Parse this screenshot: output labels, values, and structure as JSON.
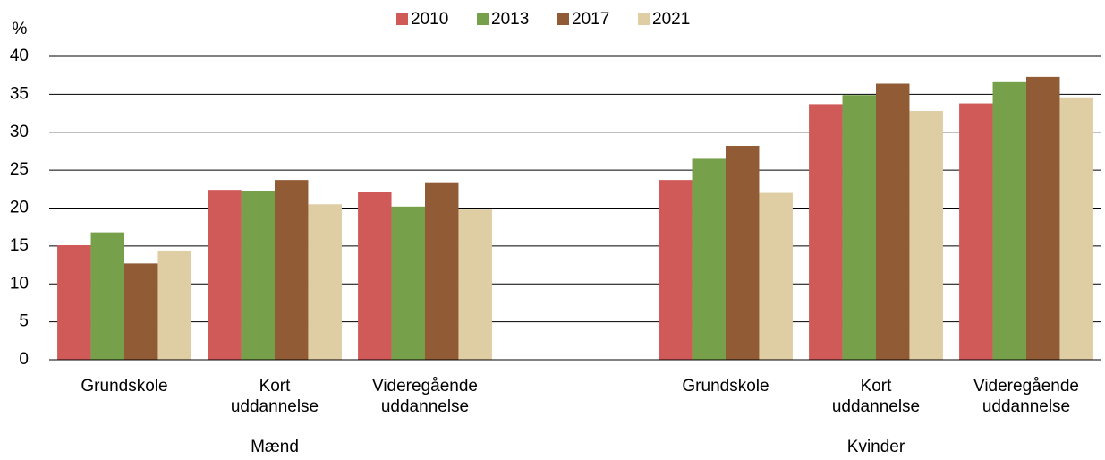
{
  "chart_data": {
    "type": "bar",
    "y_label": "%",
    "categories": [
      "Grundskole",
      "Kort uddannelse",
      "Videregående uddannelse",
      null,
      "Grundskole",
      "Kort uddannelse",
      "Videregående uddannelse"
    ],
    "groups": [
      "Mænd",
      "Kvinder"
    ],
    "series": [
      {
        "name": "2010",
        "color": "#d05a58",
        "values": [
          15.1,
          22.4,
          22.1,
          null,
          23.7,
          33.7,
          33.8
        ]
      },
      {
        "name": "2013",
        "color": "#77a04a",
        "values": [
          16.8,
          22.3,
          20.2,
          null,
          26.5,
          34.9,
          36.6
        ]
      },
      {
        "name": "2017",
        "color": "#915b35",
        "values": [
          12.7,
          23.7,
          23.4,
          null,
          28.2,
          36.4,
          37.3
        ]
      },
      {
        "name": "2021",
        "color": "#dfcda4",
        "values": [
          14.4,
          20.5,
          19.8,
          null,
          22.0,
          32.8,
          34.6
        ]
      }
    ],
    "ylim": [
      0,
      40
    ],
    "yticks": [
      0,
      5,
      10,
      15,
      20,
      25,
      30,
      35,
      40
    ],
    "grid": true,
    "legend": "top"
  }
}
